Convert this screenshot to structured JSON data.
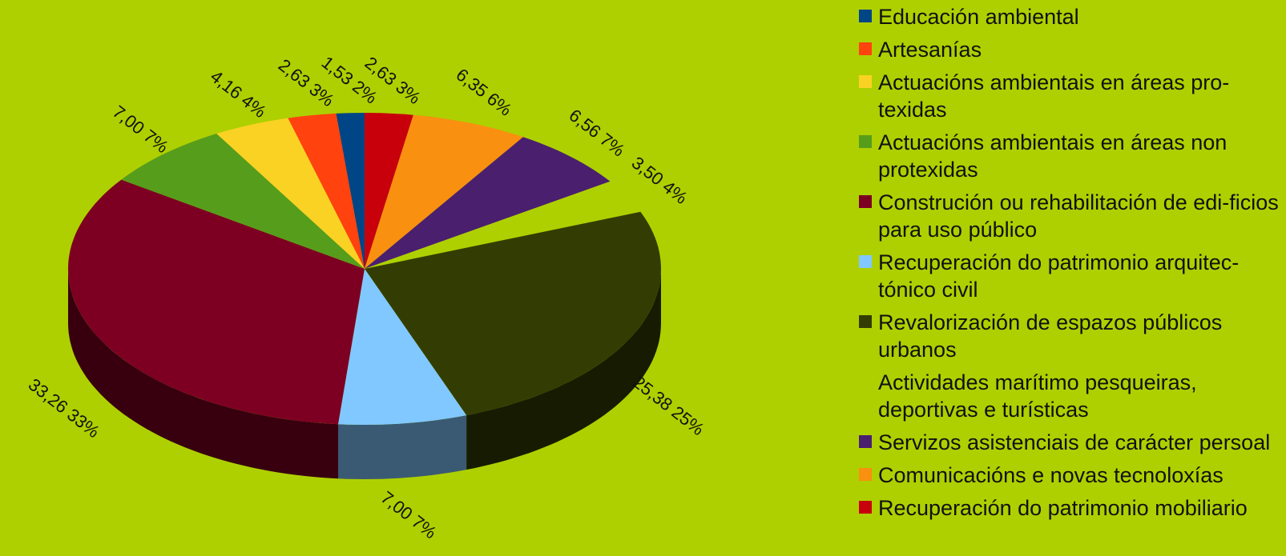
{
  "chart_data": {
    "type": "pie",
    "series": [
      {
        "name": "Recuperación do patrimonio mobiliario",
        "value": 2.63,
        "label": "2,63 3%",
        "color": "#c8000b"
      },
      {
        "name": "Comunicacións e novas tecnoloxías",
        "value": 6.35,
        "label": "6,35 6%",
        "color": "#f99010"
      },
      {
        "name": "Servizos asistenciais de carácter persoal",
        "value": 6.56,
        "label": "6,56 7%",
        "color": "#4a1f6e"
      },
      {
        "name": "Actividades marítimo pesqueiras, deportivas e turísticas",
        "value": 3.5,
        "label": "3,50 4%",
        "color": "#aed000"
      },
      {
        "name": "Revalorización de espazos públicos urbanos",
        "value": 25.38,
        "label": "25,38 25%",
        "color": "#333d03"
      },
      {
        "name": "Recuperación do patrimonio arquitectónico civil",
        "value": 7.0,
        "label": "7,00 7%",
        "color": "#80c8ff"
      },
      {
        "name": "Construción ou rehabilitación de edificios para uso público",
        "value": 33.26,
        "label": "33,26 33%",
        "color": "#7d0022"
      },
      {
        "name": "Actuacións ambientais en áreas non protexidas",
        "value": 7.0,
        "label": "7,00 7%",
        "color": "#579d1c"
      },
      {
        "name": "Actuacións ambientais en áreas protexidas",
        "value": 4.16,
        "label": "4,16 4%",
        "color": "#fad224"
      },
      {
        "name": "Artesanías",
        "value": 2.63,
        "label": "2,63 3%",
        "color": "#ff420e"
      },
      {
        "name": "Educación ambiental",
        "value": 1.53,
        "label": "1,53 2%",
        "color": "#004586"
      }
    ],
    "legend": {
      "placement": "right",
      "items": [
        {
          "label": "Educación ambiental",
          "color": "#004586"
        },
        {
          "label": "Artesanías",
          "color": "#ff420e"
        },
        {
          "label": "Actuacións ambientais en áreas  pro-texidas",
          "color": "#fad224"
        },
        {
          "label": "Actuacións ambientais en áreas non protexidas",
          "color": "#579d1c"
        },
        {
          "label": "Construción ou rehabilitación de edi-ficios para uso público",
          "color": "#7d0022"
        },
        {
          "label": "Recuperación do patrimonio arquitec-tónico civil",
          "color": "#80c8ff"
        },
        {
          "label": "Revalorización de espazos públicos urbanos",
          "color": "#333d03"
        },
        {
          "label": "Actividades marítimo pesqueiras, deportivas e turísticas",
          "color": "#aed000"
        },
        {
          "label": "Servizos asistenciais de carácter persoal",
          "color": "#4a1f6e"
        },
        {
          "label": "Comunicacións e novas tecnoloxías",
          "color": "#f99010"
        },
        {
          "label": "Recuperación do patrimonio mobiliario",
          "color": "#c8000b"
        }
      ]
    },
    "style": "3d-exploded-pie",
    "background_color": "#aed000"
  }
}
